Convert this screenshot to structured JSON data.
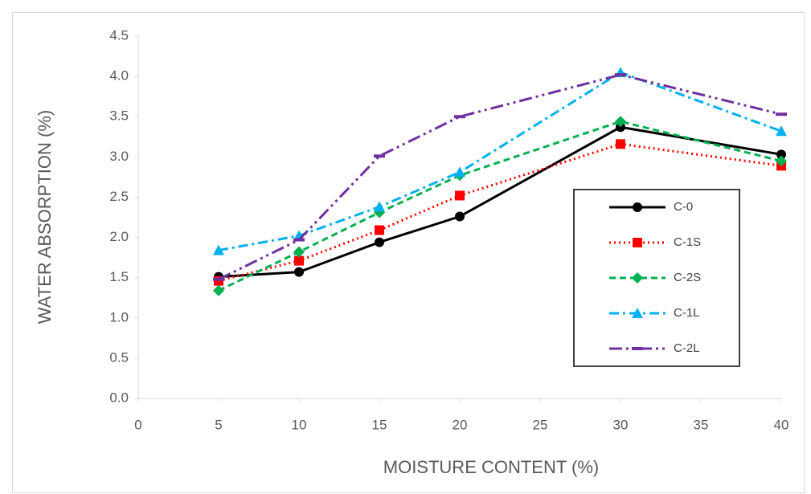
{
  "chart_data": {
    "type": "line",
    "xlabel": "MOISTURE CONTENT (%)",
    "ylabel": "WATER ABSORPTION (%)",
    "x": [
      5,
      10,
      15,
      20,
      30,
      40
    ],
    "series": [
      {
        "name": "C-0",
        "color": "#000000",
        "line_style": "solid",
        "marker": "circle",
        "values": [
          1.51,
          1.57,
          1.94,
          2.26,
          3.37,
          3.03
        ]
      },
      {
        "name": "C-1S",
        "color": "#ff0000",
        "line_style": "dotted",
        "marker": "square",
        "values": [
          1.46,
          1.71,
          2.09,
          2.52,
          3.16,
          2.89
        ]
      },
      {
        "name": "C-2S",
        "color": "#00b050",
        "line_style": "dashed",
        "marker": "diamond",
        "values": [
          1.34,
          1.82,
          2.31,
          2.77,
          3.44,
          2.95
        ]
      },
      {
        "name": "C-1L",
        "color": "#00b0f0",
        "line_style": "dash-dot",
        "marker": "triangle",
        "values": [
          1.84,
          2.02,
          2.38,
          2.81,
          4.05,
          3.32
        ]
      },
      {
        "name": "C-2L",
        "color": "#7030a0",
        "line_style": "dash-dot-dot",
        "marker": "dash",
        "values": [
          1.48,
          1.97,
          3.01,
          3.5,
          4.02,
          3.53
        ]
      }
    ],
    "xlim": [
      0,
      40
    ],
    "xticks": [
      0,
      5,
      10,
      15,
      20,
      25,
      30,
      35,
      40
    ],
    "ylim": [
      0,
      4.5
    ],
    "yticks": [
      {
        "value": 0,
        "label": "0.0"
      },
      0.5,
      {
        "value": 1,
        "label": "1.0"
      },
      1.5,
      {
        "value": 2,
        "label": "2.0"
      },
      2.5,
      {
        "value": 3,
        "label": "3.0"
      },
      3.5,
      {
        "value": 4,
        "label": "4.0"
      },
      4.5
    ],
    "grid": false,
    "legend": "right"
  }
}
